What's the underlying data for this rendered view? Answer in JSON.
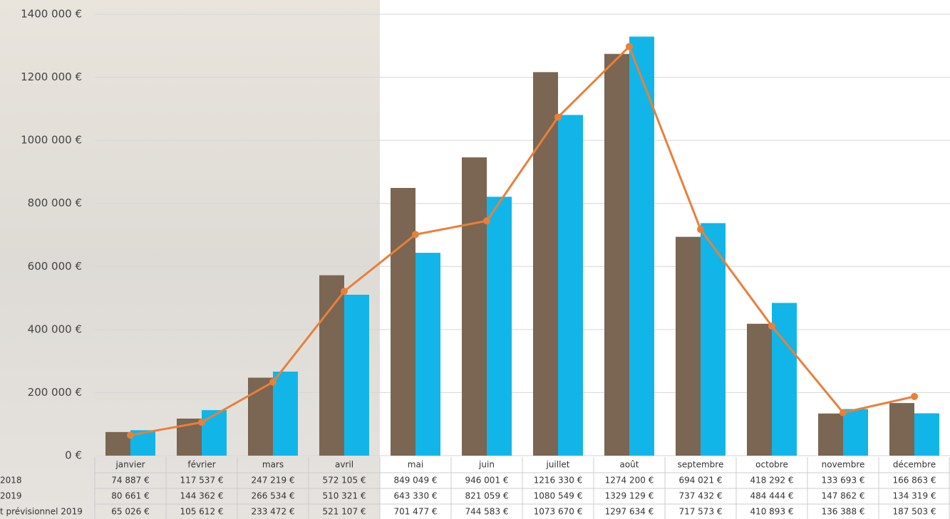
{
  "chart_data": {
    "type": "bar",
    "categories": [
      "janvier",
      "février",
      "mars",
      "avril",
      "mai",
      "juin",
      "juillet",
      "août",
      "septembre",
      "octobre",
      "novembre",
      "décembre"
    ],
    "series": [
      {
        "name": "2018",
        "color": "#7a6652",
        "values": [
          74887,
          117537,
          247219,
          572105,
          849049,
          946001,
          1216330,
          1274200,
          694021,
          418292,
          133693,
          166863
        ],
        "value_labels": [
          "74 887 €",
          "117 537 €",
          "247 219 €",
          "572 105 €",
          "849 049 €",
          "946 001 €",
          "1216 330 €",
          "1274 200 €",
          "694 021 €",
          "418 292 €",
          "133 693 €",
          "166 863 €"
        ]
      },
      {
        "name": "2019",
        "color": "#12b5e8",
        "values": [
          80661,
          144362,
          266534,
          510321,
          643330,
          821059,
          1080549,
          1329129,
          737432,
          484444,
          147862,
          134319
        ],
        "value_labels": [
          "80 661 €",
          "144 362 €",
          "266 534 €",
          "510 321 €",
          "643 330 €",
          "821 059 €",
          "1080 549 €",
          "1329 129 €",
          "737 432 €",
          "484 444 €",
          "147 862 €",
          "134 319 €"
        ]
      },
      {
        "name": "t prévisionnel 2019",
        "type": "line",
        "color": "#e8803a",
        "values": [
          65026,
          105612,
          233472,
          521107,
          701477,
          744583,
          1073670,
          1297634,
          717573,
          410893,
          136388,
          187503
        ],
        "value_labels": [
          "65 026 €",
          "105 612 €",
          "233 472 €",
          "521 107 €",
          "701 477 €",
          "744 583 €",
          "1073 670 €",
          "1297 634 €",
          "717 573 €",
          "410 893 €",
          "136 388 €",
          "187 503 €"
        ]
      }
    ],
    "ylim": [
      0,
      1400000
    ],
    "yticks": [
      {
        "value": 0,
        "label": "0 €"
      },
      {
        "value": 200000,
        "label": "200 000 €"
      },
      {
        "value": 400000,
        "label": "400 000 €"
      },
      {
        "value": 600000,
        "label": "600 000 €"
      },
      {
        "value": 800000,
        "label": "800 000 €"
      },
      {
        "value": 1000000,
        "label": "1000 000 €"
      },
      {
        "value": 1200000,
        "label": "1200 000 €"
      },
      {
        "value": 1400000,
        "label": "1400 000 €"
      }
    ],
    "grid": true
  }
}
